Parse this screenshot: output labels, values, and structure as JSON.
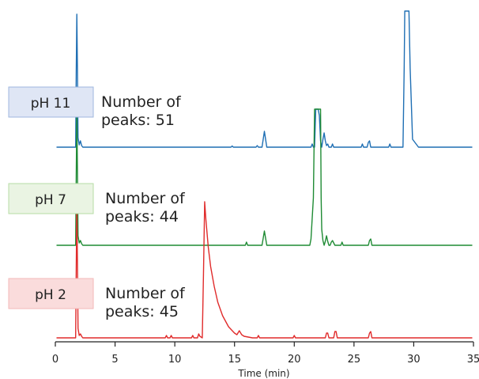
{
  "chart_data": {
    "type": "line",
    "title": "",
    "xlabel": "Time (min)",
    "ylabel": "",
    "xlim": [
      0,
      35
    ],
    "xticks": [
      0,
      5,
      10,
      15,
      20,
      25,
      30,
      35
    ],
    "xtick_labels": [
      "0",
      "5",
      "10",
      "15",
      "20",
      "25",
      "30",
      "35"
    ],
    "grid": false,
    "series": [
      {
        "name": "pH 11",
        "color": "#1f6fb4",
        "box_fill": "#dfe6f5",
        "box_stroke": "#9fb7df",
        "peaks_line1": "Number of",
        "peaks_line2": "peaks:  51",
        "x": [
          0.1,
          1.7,
          1.75,
          1.8,
          1.85,
          1.9,
          2.0,
          2.1,
          2.2,
          2.3,
          2.6,
          14.7,
          14.8,
          14.9,
          16.8,
          16.9,
          17.0,
          17.3,
          17.4,
          17.5,
          17.6,
          17.7,
          17.9,
          21.4,
          21.5,
          21.6,
          21.7,
          21.8,
          21.9,
          22.0,
          22.1,
          22.2,
          22.3,
          22.4,
          22.5,
          22.6,
          22.7,
          22.8,
          22.9,
          23.1,
          23.2,
          23.3,
          23.4,
          25.6,
          25.7,
          25.8,
          26.1,
          26.2,
          26.3,
          26.4,
          27.9,
          28.0,
          28.1,
          29.1,
          29.2,
          29.25,
          29.6,
          29.7,
          29.9,
          30.4,
          34.9
        ],
        "y": [
          0,
          0,
          95,
          168,
          100,
          12,
          3,
          8,
          2,
          0,
          0,
          0,
          1.5,
          0,
          0,
          2,
          0,
          0,
          10,
          20,
          10,
          0,
          0,
          0,
          4,
          0,
          0,
          48,
          48,
          48,
          40,
          8,
          0,
          10,
          18,
          8,
          2,
          4,
          0,
          0,
          4,
          0,
          0,
          0,
          4,
          0,
          0,
          6,
          8,
          0,
          0,
          4,
          0,
          0,
          100,
          172,
          172,
          100,
          10,
          0,
          0
        ]
      },
      {
        "name": "pH 7",
        "color": "#1f8b34",
        "box_fill": "#eaf4e3",
        "box_stroke": "#b7dca6",
        "peaks_line1": "Number of",
        "peaks_line2": "peaks:  44",
        "x": [
          0.1,
          1.7,
          1.75,
          1.8,
          1.85,
          1.9,
          2.0,
          2.1,
          2.2,
          2.3,
          2.6,
          15.9,
          16.0,
          16.1,
          17.3,
          17.4,
          17.5,
          17.6,
          17.7,
          17.9,
          21.3,
          21.4,
          21.6,
          21.7,
          22.2,
          22.25,
          22.3,
          22.4,
          22.5,
          22.6,
          22.7,
          22.8,
          22.9,
          23.0,
          23.1,
          23.2,
          23.3,
          23.4,
          23.5,
          23.9,
          24.0,
          24.1,
          26.2,
          26.3,
          26.4,
          26.5,
          34.9
        ],
        "y": [
          0,
          0,
          88,
          168,
          95,
          12,
          3,
          6,
          2,
          0,
          0,
          0,
          4,
          0,
          0,
          9,
          18,
          9,
          0,
          0,
          0,
          8,
          60,
          172,
          172,
          60,
          20,
          6,
          0,
          5,
          12,
          5,
          0,
          0,
          4,
          6,
          3,
          0,
          0,
          0,
          4,
          0,
          0,
          6,
          8,
          0,
          0
        ]
      },
      {
        "name": "pH 2",
        "color": "#e02b2b",
        "box_fill": "#fadcdc",
        "box_stroke": "#f3b8b8",
        "peaks_line1": "Number of",
        "peaks_line2": "peaks:  45",
        "x": [
          0.1,
          1.7,
          1.75,
          1.8,
          1.85,
          1.9,
          2.0,
          2.1,
          2.2,
          2.3,
          2.6,
          9.2,
          9.3,
          9.4,
          9.6,
          9.7,
          9.8,
          11.4,
          11.5,
          11.6,
          11.9,
          12.0,
          12.1,
          12.3,
          12.4,
          12.5,
          12.6,
          12.8,
          13.0,
          13.3,
          13.6,
          14.0,
          14.5,
          15.0,
          15.2,
          15.4,
          15.6,
          15.8,
          16.5,
          16.9,
          17.0,
          17.1,
          19.9,
          20.0,
          20.1,
          22.6,
          22.7,
          22.8,
          22.9,
          23.3,
          23.4,
          23.5,
          23.6,
          26.2,
          26.3,
          26.4,
          26.5,
          34.9
        ],
        "y": [
          0,
          0,
          88,
          168,
          95,
          12,
          3,
          5,
          2,
          0,
          0,
          0,
          3,
          0,
          0,
          3,
          0,
          0,
          3,
          0,
          0,
          5,
          2,
          0,
          80,
          172,
          150,
          115,
          90,
          65,
          45,
          28,
          14,
          6,
          4,
          9,
          4,
          2,
          0,
          0,
          3,
          0,
          0,
          3,
          0,
          0,
          6,
          6,
          0,
          0,
          8,
          8,
          0,
          0,
          6,
          8,
          0,
          0
        ]
      }
    ]
  }
}
